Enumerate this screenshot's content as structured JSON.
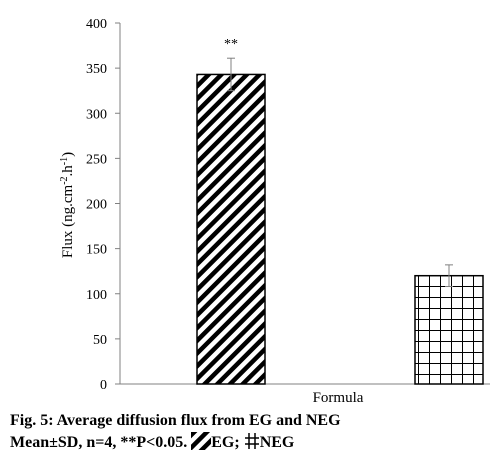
{
  "chart_data": {
    "type": "bar",
    "categories": [
      "EG",
      "NEG"
    ],
    "values": [
      343,
      120
    ],
    "errors": [
      18,
      12
    ],
    "annotations": [
      "**",
      ""
    ],
    "patterns": [
      "diagonal-stripes",
      "grid"
    ],
    "xlabel": "Formula",
    "ylabel_main": "Flux (ng.cm",
    "ylabel_sup1": "-2",
    "ylabel_mid": ".h",
    "ylabel_sup2": "-1",
    "ylabel_end": ")",
    "ylim": [
      0,
      400
    ],
    "yticks": [
      0,
      50,
      100,
      150,
      200,
      250,
      300,
      350,
      400
    ],
    "grid": false,
    "bar_color": "#000000"
  },
  "caption": {
    "line1": "Fig. 5: Average diffusion flux from EG and NEG",
    "line2_prefix": "Mean±SD, n=4, **P<0.05.",
    "legend_eg": "EG;",
    "legend_neg": "NEG"
  }
}
